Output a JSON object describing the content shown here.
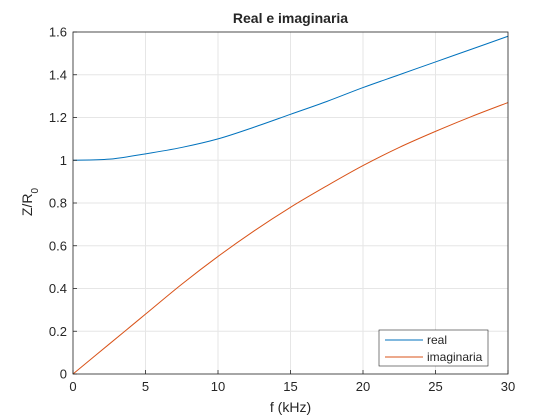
{
  "chart_data": {
    "type": "line",
    "title": "Real e imaginaria",
    "xlabel": "f (kHz)",
    "ylabel_main": "Z/R",
    "ylabel_sub": "0",
    "xlim": [
      0,
      30
    ],
    "ylim": [
      0,
      1.6
    ],
    "xticks": [
      0,
      5,
      10,
      15,
      20,
      25,
      30
    ],
    "xtick_labels": [
      "0",
      "5",
      "10",
      "15",
      "20",
      "25",
      "30"
    ],
    "yticks": [
      0,
      0.2,
      0.4,
      0.6,
      0.8,
      1.0,
      1.2,
      1.4,
      1.6
    ],
    "ytick_labels": [
      "0",
      "0.2",
      "0.4",
      "0.6",
      "0.8",
      "1",
      "1.2",
      "1.4",
      "1.6"
    ],
    "grid": true,
    "legend_position": "bottom-right",
    "x": [
      0,
      2.5,
      5,
      7.5,
      10,
      12.5,
      15,
      17.5,
      20,
      22.5,
      25,
      27.5,
      30
    ],
    "series": [
      {
        "name": "real",
        "color": "#0072BD",
        "values": [
          1.0,
          1.005,
          1.03,
          1.06,
          1.1,
          1.155,
          1.215,
          1.275,
          1.34,
          1.4,
          1.46,
          1.52,
          1.58
        ]
      },
      {
        "name": "imaginaria",
        "color": "#D95319",
        "values": [
          0.0,
          0.14,
          0.28,
          0.42,
          0.55,
          0.67,
          0.78,
          0.88,
          0.975,
          1.06,
          1.135,
          1.205,
          1.27
        ]
      }
    ]
  }
}
